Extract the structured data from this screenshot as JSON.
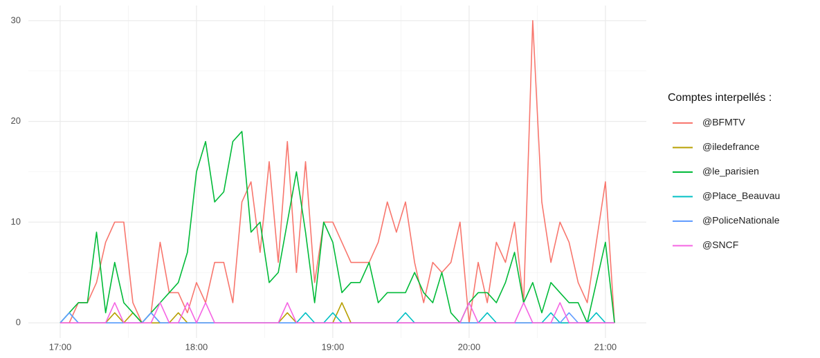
{
  "chart_data": {
    "type": "line",
    "x": [
      "17:00",
      "17:04",
      "17:08",
      "17:12",
      "17:16",
      "17:20",
      "17:24",
      "17:28",
      "17:32",
      "17:36",
      "17:40",
      "17:44",
      "17:48",
      "17:52",
      "17:56",
      "18:00",
      "18:04",
      "18:08",
      "18:12",
      "18:16",
      "18:20",
      "18:24",
      "18:28",
      "18:32",
      "18:36",
      "18:40",
      "18:44",
      "18:48",
      "18:52",
      "18:56",
      "19:00",
      "19:04",
      "19:08",
      "19:12",
      "19:16",
      "19:20",
      "19:24",
      "19:28",
      "19:32",
      "19:36",
      "19:40",
      "19:44",
      "19:48",
      "19:52",
      "19:56",
      "20:00",
      "20:04",
      "20:08",
      "20:12",
      "20:16",
      "20:20",
      "20:24",
      "20:28",
      "20:32",
      "20:36",
      "20:40",
      "20:44",
      "20:48",
      "20:52",
      "20:56",
      "21:00",
      "21:04"
    ],
    "series": [
      {
        "name": "@BFMTV",
        "color": "#F8766D",
        "values": [
          0,
          0,
          2,
          2,
          4,
          8,
          10,
          10,
          2,
          0,
          1,
          8,
          3,
          3,
          1,
          4,
          2,
          6,
          6,
          2,
          12,
          14,
          7,
          16,
          6,
          18,
          5,
          16,
          4,
          10,
          10,
          8,
          6,
          6,
          6,
          8,
          12,
          9,
          12,
          6,
          2,
          6,
          5,
          6,
          10,
          0,
          6,
          2,
          8,
          6,
          10,
          2,
          30,
          12,
          6,
          10,
          8,
          4,
          2,
          8,
          14,
          0
        ]
      },
      {
        "name": "@iledefrance",
        "color": "#B79F00",
        "values": [
          0,
          0,
          0,
          0,
          0,
          0,
          1,
          0,
          1,
          0,
          0,
          0,
          0,
          1,
          0,
          0,
          0,
          0,
          0,
          0,
          0,
          0,
          0,
          0,
          0,
          1,
          0,
          0,
          0,
          0,
          0,
          2,
          0,
          0,
          0,
          0,
          0,
          0,
          0,
          0,
          0,
          0,
          0,
          0,
          0,
          0,
          0,
          0,
          0,
          0,
          0,
          0,
          0,
          0,
          0,
          0,
          0,
          0,
          0,
          0,
          0,
          0
        ]
      },
      {
        "name": "@le_parisien",
        "color": "#00BA38",
        "values": [
          0,
          1,
          2,
          2,
          9,
          1,
          6,
          2,
          1,
          0,
          1,
          2,
          3,
          4,
          7,
          15,
          18,
          12,
          13,
          18,
          19,
          9,
          10,
          4,
          5,
          10,
          15,
          9,
          2,
          10,
          8,
          3,
          4,
          4,
          6,
          2,
          3,
          3,
          3,
          5,
          3,
          2,
          5,
          1,
          0,
          2,
          3,
          3,
          2,
          4,
          7,
          2,
          4,
          1,
          4,
          3,
          2,
          2,
          0,
          4,
          8,
          0
        ]
      },
      {
        "name": "@Place_Beauvau",
        "color": "#00BFC4",
        "values": [
          0,
          1,
          0,
          0,
          0,
          0,
          0,
          0,
          0,
          0,
          1,
          0,
          0,
          0,
          0,
          0,
          0,
          0,
          0,
          0,
          0,
          0,
          0,
          0,
          0,
          0,
          0,
          1,
          0,
          0,
          1,
          0,
          0,
          0,
          0,
          0,
          0,
          0,
          1,
          0,
          0,
          0,
          0,
          0,
          0,
          0,
          0,
          1,
          0,
          0,
          0,
          0,
          0,
          0,
          1,
          0,
          0,
          0,
          0,
          1,
          0,
          0
        ]
      },
      {
        "name": "@PoliceNationale",
        "color": "#619CFF",
        "values": [
          0,
          1,
          0,
          0,
          0,
          0,
          0,
          0,
          0,
          0,
          1,
          0,
          0,
          0,
          0,
          0,
          0,
          0,
          0,
          0,
          0,
          0,
          0,
          0,
          0,
          0,
          0,
          0,
          0,
          0,
          0,
          0,
          0,
          0,
          0,
          0,
          0,
          0,
          0,
          0,
          0,
          0,
          0,
          0,
          0,
          0,
          0,
          0,
          0,
          0,
          0,
          0,
          0,
          0,
          0,
          0,
          1,
          0,
          0,
          0,
          0,
          0
        ]
      },
      {
        "name": "@SNCF",
        "color": "#F564E3",
        "values": [
          0,
          0,
          0,
          0,
          0,
          0,
          2,
          0,
          0,
          0,
          0,
          2,
          0,
          0,
          2,
          0,
          2,
          0,
          0,
          0,
          0,
          0,
          0,
          0,
          0,
          2,
          0,
          0,
          0,
          0,
          0,
          0,
          0,
          0,
          0,
          0,
          0,
          0,
          0,
          0,
          0,
          0,
          0,
          0,
          0,
          2,
          0,
          0,
          0,
          0,
          0,
          2,
          0,
          0,
          0,
          2,
          0,
          0,
          0,
          0,
          0,
          0
        ]
      }
    ],
    "legend_title": "Comptes interpellés :",
    "legend": "right",
    "xlim": [
      "16:46",
      "21:18"
    ],
    "xticks": [
      "17:00",
      "18:00",
      "19:00",
      "20:00",
      "21:00"
    ],
    "x_minor_ticks": [
      "17:30",
      "18:30",
      "19:30",
      "20:30"
    ],
    "ylim": [
      -1.5,
      31.5
    ],
    "yticks": [
      0,
      10,
      20,
      30
    ],
    "y_minor_ticks": [
      5,
      15,
      25
    ],
    "grid": true
  }
}
